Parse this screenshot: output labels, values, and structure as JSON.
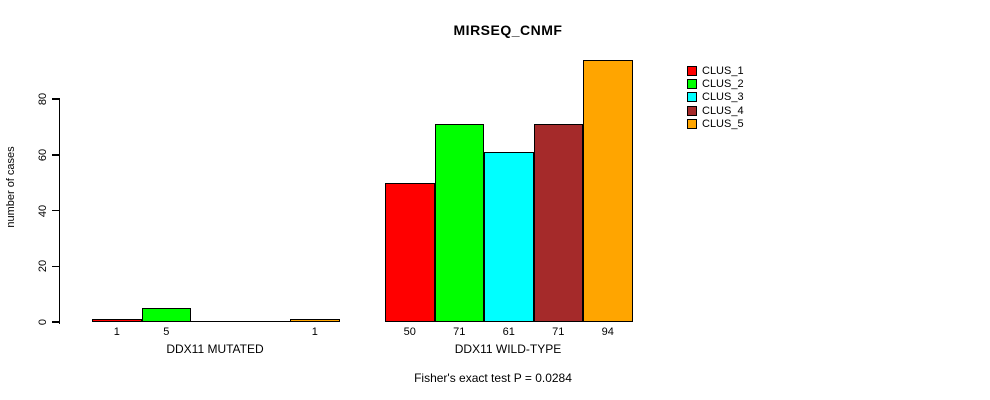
{
  "chart_data": {
    "type": "bar",
    "title": "MIRSEQ_CNMF",
    "ylabel": "number of cases",
    "xlabel": "",
    "ylim": [
      0,
      94
    ],
    "yticks": [
      0,
      20,
      40,
      60,
      80
    ],
    "grid": false,
    "legend_position": "right-top",
    "categories": [
      "DDX11 MUTATED",
      "DDX11 WILD-TYPE"
    ],
    "series": [
      {
        "name": "CLUS_1",
        "color": "#ff0000",
        "values": [
          1,
          50
        ]
      },
      {
        "name": "CLUS_2",
        "color": "#00ff00",
        "values": [
          5,
          71
        ]
      },
      {
        "name": "CLUS_3",
        "color": "#00ffff",
        "values": [
          0,
          61
        ]
      },
      {
        "name": "CLUS_4",
        "color": "#a52a2a",
        "values": [
          0,
          71
        ]
      },
      {
        "name": "CLUS_5",
        "color": "#ffa500",
        "values": [
          1,
          94
        ]
      }
    ],
    "bar_value_labels": {
      "show": true,
      "hide_zero": true
    },
    "annotation": "Fisher's exact test P = 0.0284",
    "axis_color": "#000000",
    "background_color": "#ffffff"
  }
}
